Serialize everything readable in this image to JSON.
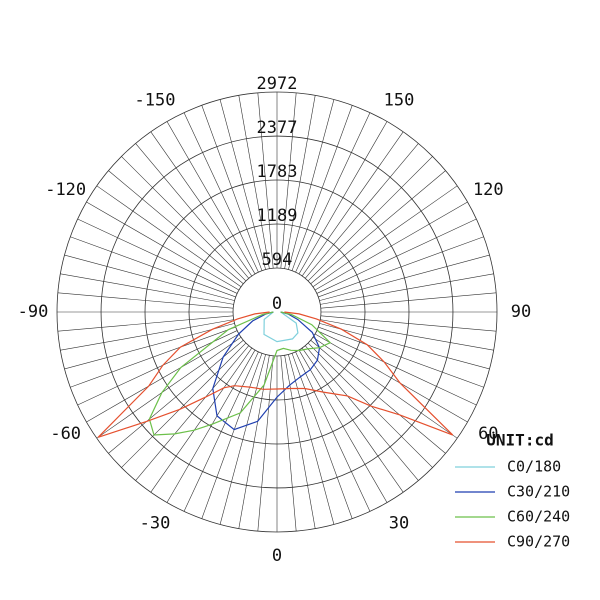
{
  "chart_data": {
    "type": "polar",
    "unit_label": "UNIT:cd",
    "rlim": [
      0,
      2972
    ],
    "rticks": [
      0,
      594,
      1189,
      1783,
      2377,
      2972
    ],
    "angle_ticks": [
      -150,
      -120,
      -90,
      -60,
      -30,
      0,
      30,
      60,
      90,
      120,
      150
    ],
    "grid": true,
    "legend": "lower right",
    "series": [
      {
        "name": "C0/180",
        "color": "#7fd0dc",
        "theta": [
          -90,
          -60,
          -30,
          0,
          30,
          45,
          60,
          90
        ],
        "values": [
          50,
          200,
          350,
          400,
          420,
          400,
          300,
          50
        ]
      },
      {
        "name": "C30/210",
        "color": "#1f3fb0",
        "theta": [
          -90,
          -80,
          -70,
          -60,
          -50,
          -40,
          -30,
          -20,
          -10,
          0,
          10,
          20,
          30,
          40,
          50,
          60,
          70,
          80,
          90
        ],
        "values": [
          50,
          150,
          350,
          600,
          950,
          1350,
          1620,
          1690,
          1500,
          1150,
          1000,
          930,
          900,
          850,
          750,
          550,
          300,
          150,
          50
        ]
      },
      {
        "name": "C60/240",
        "color": "#6cc04a",
        "theta": [
          -90,
          -80,
          -70,
          -60,
          -55,
          -50,
          -45,
          -40,
          -35,
          -30,
          -20,
          -10,
          0,
          10,
          20,
          30,
          40,
          50,
          60,
          70,
          80,
          90
        ],
        "values": [
          50,
          200,
          700,
          1500,
          1900,
          2250,
          2350,
          2150,
          1950,
          1750,
          1450,
          1000,
          520,
          500,
          550,
          600,
          650,
          750,
          830,
          500,
          200,
          50
        ]
      },
      {
        "name": "C90/270",
        "color": "#e5502e",
        "theta": [
          -90,
          -85,
          -80,
          -75,
          -70,
          -65,
          -60,
          -55,
          -50,
          -45,
          -40,
          -35,
          -30,
          -20,
          -10,
          0,
          10,
          20,
          30,
          35,
          40,
          45,
          50,
          55,
          60,
          65,
          70,
          75,
          80,
          85,
          90
        ],
        "values": [
          100,
          300,
          540,
          900,
          1390,
          1700,
          2000,
          2950,
          2300,
          1860,
          1500,
          1250,
          1150,
          1080,
          1060,
          1040,
          1050,
          1100,
          1250,
          1350,
          1480,
          1800,
          2160,
          2900,
          1920,
          1600,
          1300,
          900,
          540,
          300,
          100
        ]
      }
    ]
  }
}
